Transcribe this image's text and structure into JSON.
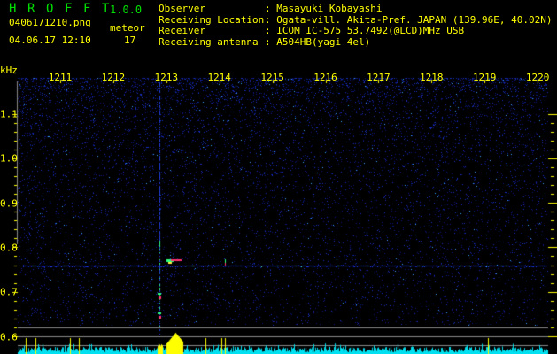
{
  "app": {
    "name_letters": [
      "H",
      "R",
      "O",
      "F",
      "F",
      "T"
    ],
    "version": "1.0.0"
  },
  "file": {
    "name": "0406171210.png",
    "datetime": "04.06.17 12:10"
  },
  "meteor": {
    "label": "meteor",
    "count": "17"
  },
  "info": [
    {
      "label": "Observer",
      "value": ": Masayuki Kobayashi"
    },
    {
      "label": "Receiving Location",
      "value": ": Ogata-vill. Akita-Pref. JAPAN (139.96E, 40.02N)"
    },
    {
      "label": "Receiver",
      "value": ": ICOM IC-575 53.7492(@LCD)MHz USB"
    },
    {
      "label": "Receiving antenna",
      "value": ": A504HB(yagi 4el)"
    }
  ],
  "axis": {
    "unit": "kHz",
    "freq_labels": [
      "1.1",
      "1.0",
      "0.9",
      "0.8",
      "0.7",
      "0.6"
    ],
    "time_labels": [
      "1211",
      "1212",
      "1213",
      "1214",
      "1215",
      "1216",
      "1217",
      "1218",
      "1219",
      "1220"
    ]
  },
  "colors": {
    "text": "#ffff00",
    "title": "#00e000",
    "noise": "#1a2cd0",
    "carrier": "#3050ff",
    "bars": "#00e0f0",
    "bars_peak": "#ffff00"
  }
}
